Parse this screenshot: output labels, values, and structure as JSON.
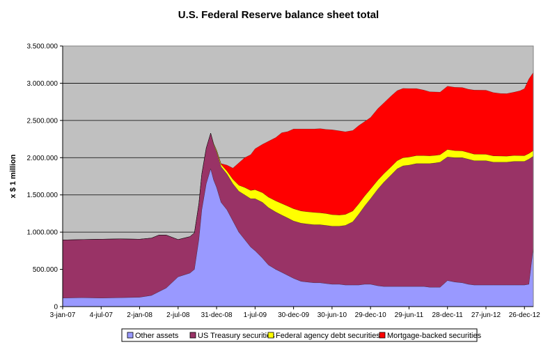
{
  "chart_data": {
    "type": "area",
    "stacked": true,
    "title": "U.S. Federal Reserve balance sheet total",
    "ylabel": "x $ 1 million",
    "xlabel": "",
    "ylim": [
      0,
      3500000
    ],
    "yticks": [
      0,
      500000,
      1000000,
      1500000,
      2000000,
      2500000,
      3000000,
      3500000
    ],
    "ytick_labels": [
      "0",
      "500.000",
      "1.000.000",
      "1.500.000",
      "2.000.000",
      "2.500.000",
      "3.000.000",
      "3.500.000"
    ],
    "xlim": [
      "2007-01-03",
      "2013-02-06"
    ],
    "xtick_dates": [
      "2007-01-03",
      "2007-07-04",
      "2008-01-02",
      "2008-07-02",
      "2008-12-31",
      "2009-07-01",
      "2009-12-30",
      "2010-06-30",
      "2010-12-29",
      "2011-06-29",
      "2011-12-28",
      "2012-06-27",
      "2012-12-26"
    ],
    "xtick_labels": [
      "3-jan-07",
      "4-jul-07",
      "2-jan-08",
      "2-jul-08",
      "31-dec-08",
      "1-jul-09",
      "30-dec-09",
      "30-jun-10",
      "29-dec-10",
      "29-jun-11",
      "28-dec-11",
      "27-jun-12",
      "26-dec-12"
    ],
    "grid": "horizontal",
    "background_color": "#c0c0c0",
    "legend_position": "bottom",
    "x": [
      "2007-01-03",
      "2007-04-04",
      "2007-07-04",
      "2007-10-03",
      "2008-01-02",
      "2008-02-27",
      "2008-04-02",
      "2008-05-07",
      "2008-07-02",
      "2008-08-27",
      "2008-09-17",
      "2008-10-08",
      "2008-10-22",
      "2008-11-12",
      "2008-12-03",
      "2008-12-17",
      "2008-12-31",
      "2009-01-21",
      "2009-02-18",
      "2009-03-18",
      "2009-04-15",
      "2009-05-13",
      "2009-06-10",
      "2009-07-01",
      "2009-08-05",
      "2009-09-02",
      "2009-10-07",
      "2009-11-04",
      "2009-12-02",
      "2009-12-30",
      "2010-02-03",
      "2010-03-03",
      "2010-04-07",
      "2010-05-05",
      "2010-06-02",
      "2010-06-30",
      "2010-08-04",
      "2010-09-01",
      "2010-10-06",
      "2010-11-03",
      "2010-12-01",
      "2010-12-29",
      "2011-02-02",
      "2011-03-02",
      "2011-04-06",
      "2011-05-04",
      "2011-06-01",
      "2011-06-29",
      "2011-08-03",
      "2011-09-07",
      "2011-10-05",
      "2011-11-02",
      "2011-11-23",
      "2011-12-28",
      "2012-02-01",
      "2012-03-07",
      "2012-04-04",
      "2012-05-02",
      "2012-06-27",
      "2012-08-01",
      "2012-09-05",
      "2012-10-03",
      "2012-11-07",
      "2012-12-05",
      "2012-12-26",
      "2013-01-16",
      "2013-02-06"
    ],
    "series": [
      {
        "name": "Other assets",
        "color": "#9999ff",
        "values": [
          115000,
          120000,
          115000,
          120000,
          125000,
          150000,
          200000,
          250000,
          400000,
          450000,
          500000,
          900000,
          1300000,
          1650000,
          1850000,
          1700000,
          1600000,
          1400000,
          1300000,
          1150000,
          1000000,
          900000,
          800000,
          750000,
          650000,
          560000,
          500000,
          460000,
          420000,
          380000,
          340000,
          330000,
          320000,
          320000,
          310000,
          300000,
          300000,
          290000,
          290000,
          290000,
          300000,
          300000,
          280000,
          270000,
          270000,
          270000,
          270000,
          270000,
          270000,
          270000,
          260000,
          260000,
          260000,
          350000,
          330000,
          320000,
          300000,
          290000,
          290000,
          290000,
          290000,
          290000,
          290000,
          290000,
          290000,
          300000,
          800000
        ]
      },
      {
        "name": "US Treasury securities",
        "color": "#993366",
        "values": [
          780000,
          780000,
          790000,
          790000,
          780000,
          770000,
          760000,
          710000,
          500000,
          490000,
          490000,
          480000,
          480000,
          480000,
          480000,
          480000,
          480000,
          480000,
          480000,
          500000,
          550000,
          600000,
          650000,
          700000,
          750000,
          770000,
          770000,
          770000,
          770000,
          770000,
          780000,
          780000,
          780000,
          780000,
          780000,
          780000,
          780000,
          800000,
          850000,
          950000,
          1050000,
          1150000,
          1300000,
          1400000,
          1500000,
          1580000,
          1620000,
          1630000,
          1650000,
          1650000,
          1660000,
          1670000,
          1680000,
          1660000,
          1670000,
          1680000,
          1680000,
          1670000,
          1670000,
          1650000,
          1650000,
          1650000,
          1660000,
          1660000,
          1660000,
          1680000,
          1220000
        ]
      },
      {
        "name": "Federal agency debt securities",
        "color": "#ffff00",
        "values": [
          0,
          0,
          0,
          0,
          0,
          0,
          0,
          0,
          0,
          0,
          0,
          0,
          0,
          0,
          0,
          10000,
          20000,
          30000,
          40000,
          60000,
          80000,
          100000,
          110000,
          120000,
          130000,
          140000,
          150000,
          155000,
          160000,
          165000,
          165000,
          165000,
          165000,
          160000,
          160000,
          155000,
          150000,
          148000,
          145000,
          140000,
          135000,
          130000,
          120000,
          115000,
          110000,
          110000,
          110000,
          108000,
          108000,
          108000,
          105000,
          102000,
          100000,
          100000,
          95000,
          92000,
          90000,
          88000,
          86000,
          84000,
          82000,
          80000,
          80000,
          78000,
          77000,
          76000,
          75000
        ]
      },
      {
        "name": "Mortgage-backed securities",
        "color": "#ff0000",
        "values": [
          0,
          0,
          0,
          0,
          0,
          0,
          0,
          0,
          0,
          0,
          0,
          0,
          0,
          0,
          0,
          0,
          0,
          10000,
          80000,
          150000,
          300000,
          400000,
          480000,
          550000,
          650000,
          750000,
          850000,
          950000,
          1000000,
          1070000,
          1100000,
          1110000,
          1120000,
          1130000,
          1130000,
          1140000,
          1130000,
          1110000,
          1080000,
          1050000,
          1000000,
          960000,
          960000,
          950000,
          950000,
          940000,
          930000,
          920000,
          900000,
          880000,
          860000,
          850000,
          840000,
          850000,
          850000,
          850000,
          850000,
          860000,
          860000,
          850000,
          840000,
          840000,
          850000,
          870000,
          900000,
          1000000,
          1050000
        ]
      }
    ]
  }
}
